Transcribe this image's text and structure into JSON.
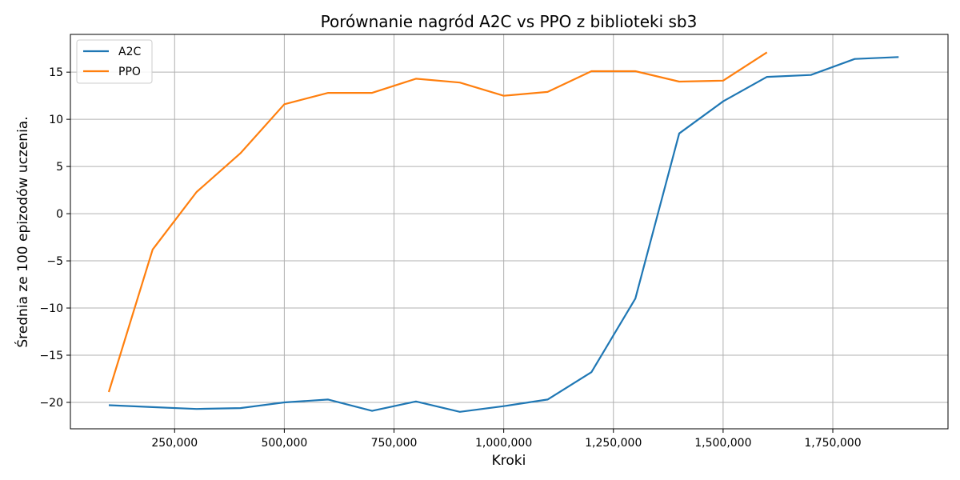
{
  "chart_data": {
    "type": "line",
    "title": "Porównanie nagród A2C vs PPO z biblioteki sb3",
    "xlabel": "Kroki",
    "ylabel": "Średnia ze 100 epizodów uczenia.",
    "xlim": [
      12500,
      2012500
    ],
    "ylim": [
      -22.8,
      19.0
    ],
    "xticks": [
      250000,
      500000,
      750000,
      1000000,
      1250000,
      1500000,
      1750000
    ],
    "xtick_labels": [
      "250,000",
      "500,000",
      "750,000",
      "1,000,000",
      "1,250,000",
      "1,500,000",
      "1,750,000"
    ],
    "yticks": [
      -20,
      -15,
      -10,
      -5,
      0,
      5,
      10,
      15
    ],
    "ytick_labels": [
      "−20",
      "−15",
      "−10",
      "−5",
      "0",
      "5",
      "10",
      "15"
    ],
    "grid": true,
    "legend_position": "top-left",
    "series": [
      {
        "name": "A2C",
        "color": "#1f77b4",
        "x": [
          100000,
          200000,
          300000,
          400000,
          500000,
          600000,
          700000,
          800000,
          900000,
          1000000,
          1100000,
          1200000,
          1300000,
          1400000,
          1500000,
          1600000,
          1700000,
          1800000,
          1900000
        ],
        "y": [
          -20.3,
          -20.5,
          -20.7,
          -20.6,
          -20.0,
          -19.7,
          -20.9,
          -19.9,
          -21.0,
          -20.4,
          -19.7,
          -16.8,
          -9.0,
          8.5,
          11.9,
          14.5,
          14.7,
          16.4,
          16.6
        ]
      },
      {
        "name": "PPO",
        "color": "#ff7f0e",
        "x": [
          100000,
          200000,
          300000,
          400000,
          500000,
          600000,
          700000,
          800000,
          900000,
          1000000,
          1100000,
          1200000,
          1300000,
          1400000,
          1500000,
          1600000
        ],
        "y": [
          -18.9,
          -3.8,
          2.3,
          6.4,
          11.6,
          12.8,
          12.8,
          14.3,
          13.9,
          12.5,
          12.9,
          15.1,
          15.1,
          14.0,
          14.1,
          17.1
        ]
      }
    ]
  }
}
